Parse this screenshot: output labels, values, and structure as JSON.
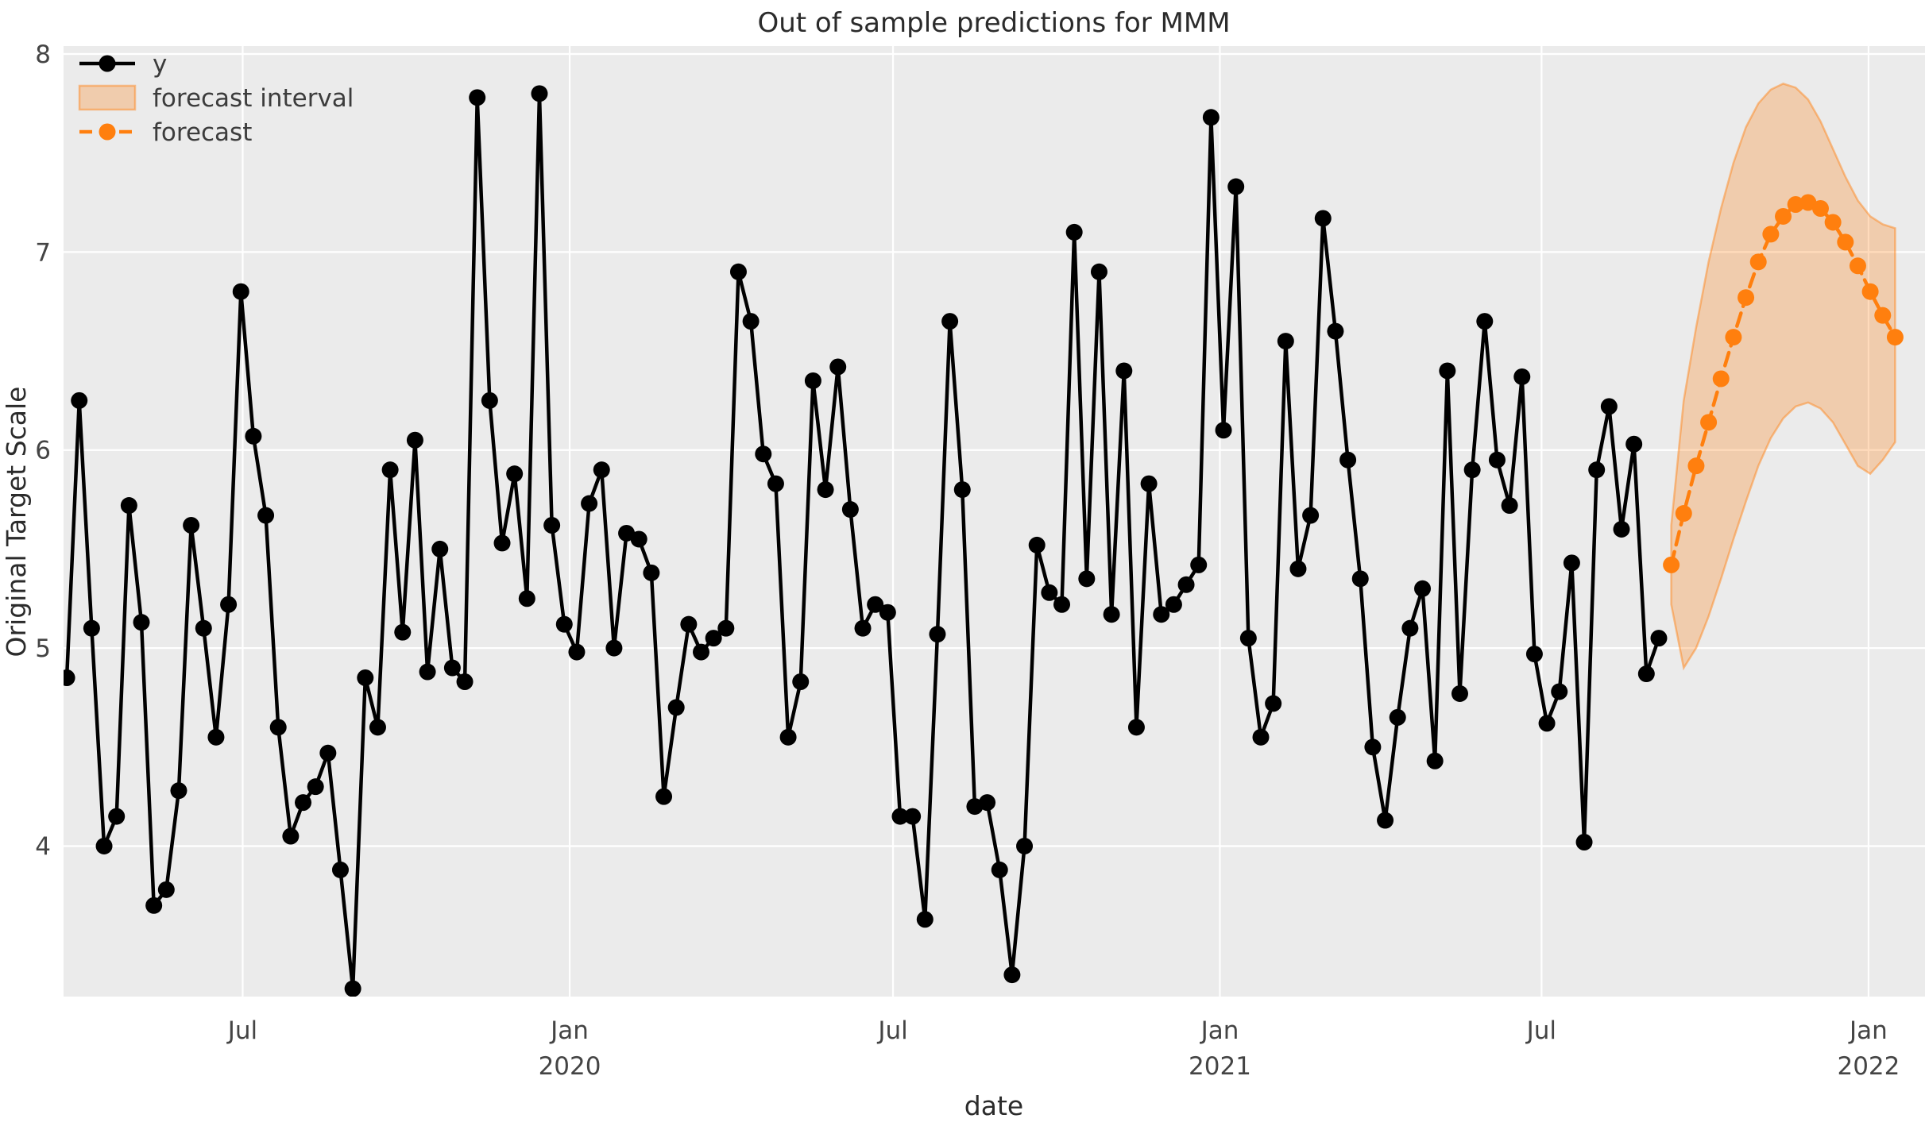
{
  "figure": {
    "title": "Out of sample predictions for MMM",
    "xlabel": "date",
    "ylabel": "Original Target Scale"
  },
  "legend": {
    "position": "upper left",
    "items": [
      {
        "label": "y",
        "kind": "line-with-marker",
        "color": "#000000"
      },
      {
        "label": "forecast interval",
        "kind": "patch",
        "color": "#FF7F0E"
      },
      {
        "label": "forecast",
        "kind": "dashed-line-with-marker",
        "color": "#FF7F0E"
      }
    ]
  },
  "chart_data": {
    "type": "line",
    "title": "Out of sample predictions for MMM",
    "xlabel": "date",
    "ylabel": "Original Target Scale",
    "grid": true,
    "legend_position": "upper left",
    "x_unit": "weekly samples, week index from first observation (late Mar 2019)",
    "ylim": [
      3.24,
      8.04
    ],
    "xlim_weeks": [
      -0.26,
      149.4
    ],
    "y_ticks": [
      8,
      7,
      6,
      5,
      4
    ],
    "x_ticks": [
      {
        "label": "Jul",
        "year": "",
        "week": 14.14
      },
      {
        "label": "Jan",
        "year": "2020",
        "week": 40.43
      },
      {
        "label": "Jul",
        "year": "",
        "week": 66.43
      },
      {
        "label": "Jan",
        "year": "2021",
        "week": 92.71
      },
      {
        "label": "Jul",
        "year": "",
        "week": 118.57
      },
      {
        "label": "Jan",
        "year": "2022",
        "week": 144.86
      }
    ],
    "series": [
      {
        "name": "y",
        "type": "line+markers",
        "color": "#000000",
        "start_week": 0,
        "values": [
          4.85,
          6.25,
          5.1,
          4.0,
          4.15,
          5.72,
          5.13,
          3.7,
          3.78,
          4.28,
          5.62,
          5.1,
          4.55,
          5.22,
          6.8,
          6.07,
          5.67,
          4.6,
          4.05,
          4.22,
          4.3,
          4.47,
          3.88,
          3.28,
          4.85,
          4.6,
          5.9,
          5.08,
          6.05,
          4.88,
          5.5,
          4.9,
          4.83,
          7.78,
          6.25,
          5.53,
          5.88,
          5.25,
          7.8,
          5.62,
          5.12,
          4.98,
          5.73,
          5.9,
          5.0,
          5.58,
          5.55,
          5.38,
          4.25,
          4.7,
          5.12,
          4.98,
          5.05,
          5.1,
          6.9,
          6.65,
          5.98,
          5.83,
          4.55,
          4.83,
          6.35,
          5.8,
          6.42,
          5.7,
          5.1,
          5.22,
          5.18,
          4.15,
          4.15,
          3.63,
          5.07,
          6.65,
          5.8,
          4.2,
          4.22,
          3.88,
          3.35,
          4.0,
          5.52,
          5.28,
          5.22,
          7.1,
          5.35,
          6.9,
          5.17,
          6.4,
          4.6,
          5.83,
          5.17,
          5.22,
          5.32,
          5.42,
          7.68,
          6.1,
          7.33,
          5.05,
          4.55,
          4.72,
          6.55,
          5.4,
          5.67,
          7.17,
          6.6,
          5.95,
          5.35,
          4.5,
          4.13,
          4.65,
          5.1,
          5.3,
          4.43,
          6.4,
          4.77,
          5.9,
          6.65,
          5.95,
          5.72,
          6.37,
          4.97,
          4.62,
          4.78,
          5.43,
          4.02,
          5.9,
          6.22,
          5.6,
          6.03,
          4.87,
          5.05
        ]
      },
      {
        "name": "forecast",
        "type": "dashed-line+markers",
        "color": "#FF7F0E",
        "start_week": 129,
        "values": [
          5.42,
          5.68,
          5.92,
          6.14,
          6.36,
          6.57,
          6.77,
          6.95,
          7.09,
          7.18,
          7.24,
          7.25,
          7.22,
          7.15,
          7.05,
          6.93,
          6.8,
          6.68,
          6.57
        ]
      },
      {
        "name": "forecast interval",
        "type": "band",
        "color": "#FF7F0E",
        "fill_opacity": 0.28,
        "start_week": 129,
        "lower": [
          5.22,
          4.9,
          5.0,
          5.16,
          5.35,
          5.55,
          5.74,
          5.92,
          6.06,
          6.16,
          6.22,
          6.24,
          6.21,
          6.14,
          6.03,
          5.92,
          5.88,
          5.95,
          6.04
        ],
        "upper": [
          5.62,
          6.25,
          6.62,
          6.95,
          7.22,
          7.45,
          7.63,
          7.75,
          7.82,
          7.85,
          7.83,
          7.77,
          7.66,
          7.52,
          7.38,
          7.26,
          7.18,
          7.14,
          7.12
        ]
      }
    ],
    "colors": {
      "plot_bg": "#EBEBEB",
      "grid": "#FFFFFF",
      "text": "#3C3C3C",
      "y_series": "#000000",
      "forecast": "#FF7F0E"
    }
  }
}
